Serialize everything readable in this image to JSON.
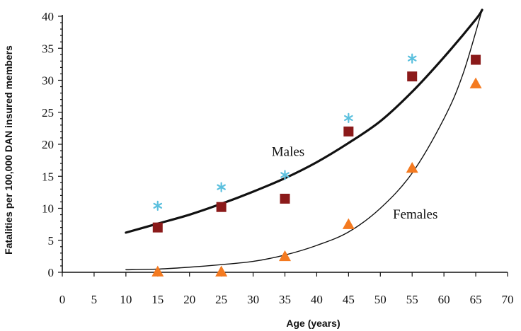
{
  "chart_data": {
    "type": "scatter",
    "title": "",
    "xlabel": "Age (years)",
    "ylabel": "Fatalities per 100,000 DAN insured members",
    "xlim": [
      0,
      70
    ],
    "ylim": [
      0,
      40
    ],
    "xticks": [
      0,
      5,
      10,
      15,
      20,
      25,
      30,
      35,
      40,
      45,
      50,
      55,
      60,
      65,
      70
    ],
    "yticks": [
      0,
      5,
      10,
      15,
      20,
      25,
      30,
      35,
      40
    ],
    "grid": false,
    "legend": "none",
    "series": [
      {
        "marker": "asterisk",
        "color": "#5bc0de",
        "x": [
          15,
          25,
          35,
          45,
          55
        ],
        "y": [
          10.4,
          13.3,
          15.2,
          24.1,
          33.4
        ]
      },
      {
        "marker": "square",
        "color": "#8b1a1a",
        "x": [
          15,
          25,
          35,
          45,
          55,
          65
        ],
        "y": [
          7.0,
          10.2,
          11.5,
          22.0,
          30.6,
          33.2
        ]
      },
      {
        "marker": "triangle",
        "color": "#f47a20",
        "x": [
          15,
          25,
          35,
          45,
          55,
          65
        ],
        "y": [
          0.1,
          0.1,
          2.5,
          7.5,
          16.3,
          29.5
        ]
      },
      {
        "marker": "line",
        "color": "#111111",
        "stroke_weight": "thick",
        "x": [
          10,
          15,
          20,
          25,
          30,
          35,
          40,
          45,
          50,
          55,
          60,
          65,
          66
        ],
        "y": [
          6.2,
          7.6,
          9.0,
          10.7,
          12.6,
          14.7,
          17.2,
          20.2,
          23.6,
          28.2,
          33.6,
          39.5,
          41.0
        ]
      },
      {
        "marker": "line",
        "color": "#111111",
        "stroke_weight": "thin",
        "x": [
          10,
          15,
          20,
          25,
          30,
          35,
          40,
          45,
          50,
          55,
          60,
          63,
          66
        ],
        "y": [
          0.4,
          0.5,
          0.8,
          1.2,
          1.7,
          2.7,
          4.2,
          6.3,
          10.0,
          15.5,
          24.0,
          31.0,
          41.0
        ]
      }
    ],
    "annotations": [
      {
        "text": "Males",
        "x": 35.5,
        "y": 18.2
      },
      {
        "text": "Females",
        "x": 55.5,
        "y": 8.4
      }
    ]
  }
}
